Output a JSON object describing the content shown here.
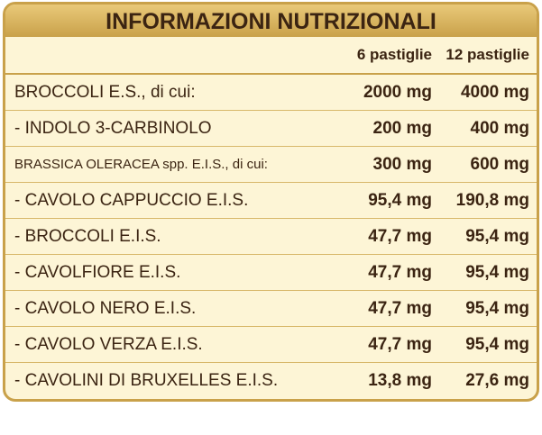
{
  "header": {
    "title": "INFORMAZIONI NUTRIZIONALI"
  },
  "table": {
    "columns": [
      "6 pastiglie",
      "12 pastiglie"
    ],
    "rows": [
      [
        "BROCCOLI E.S., di cui:",
        "2000 mg",
        "4000 mg"
      ],
      [
        "- INDOLO 3-CARBINOLO",
        "200 mg",
        "400 mg"
      ],
      [
        "BRASSICA OLERACEA spp. E.I.S., di cui:",
        "300 mg",
        "600 mg"
      ],
      [
        "- CAVOLO CAPPUCCIO E.I.S.",
        "95,4 mg",
        "190,8 mg"
      ],
      [
        "- BROCCOLI E.I.S.",
        "47,7 mg",
        "95,4 mg"
      ],
      [
        "- CAVOLFIORE E.I.S.",
        "47,7 mg",
        "95,4 mg"
      ],
      [
        "- CAVOLO NERO E.I.S.",
        "47,7 mg",
        "95,4 mg"
      ],
      [
        "- CAVOLO VERZA E.I.S.",
        "47,7 mg",
        "95,4 mg"
      ],
      [
        "- CAVOLINI DI BRUXELLES E.I.S.",
        "13,8 mg",
        "27,6 mg"
      ]
    ]
  }
}
